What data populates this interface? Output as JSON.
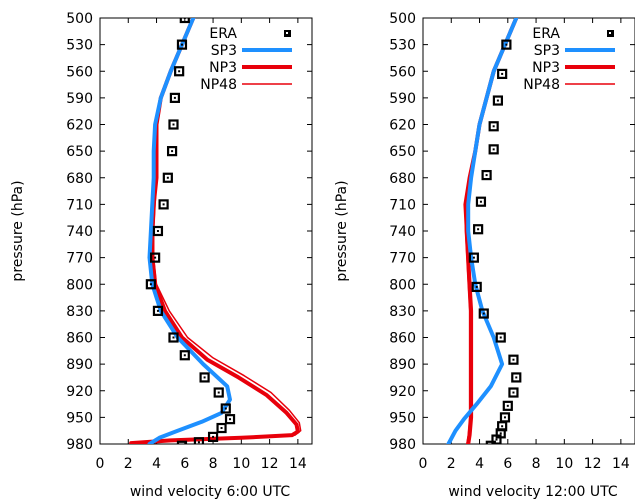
{
  "colors": {
    "ERA": "#000000",
    "SP3": "#1E90FF",
    "NP3": "#E8000B",
    "NP48": "#E8000B"
  },
  "chart_data": [
    {
      "type": "line",
      "xlabel": "wind velocity 6:00 UTC",
      "ylabel": "pressure (hPa)",
      "xlim": [
        0,
        15
      ],
      "ylim": [
        980,
        500
      ],
      "yticks": [
        500,
        530,
        560,
        590,
        620,
        650,
        680,
        710,
        740,
        770,
        800,
        830,
        860,
        890,
        920,
        950,
        980
      ],
      "xticks": [
        0,
        2,
        4,
        6,
        8,
        10,
        12,
        14
      ],
      "legend_position": "top-right",
      "series": [
        {
          "name": "ERA",
          "style": "markers",
          "points": [
            [
              6.0,
              500
            ],
            [
              5.8,
              530
            ],
            [
              5.6,
              560
            ],
            [
              5.3,
              590
            ],
            [
              5.2,
              620
            ],
            [
              5.1,
              650
            ],
            [
              4.8,
              680
            ],
            [
              4.5,
              710
            ],
            [
              4.1,
              740
            ],
            [
              3.9,
              770
            ],
            [
              3.6,
              800
            ],
            [
              4.1,
              830
            ],
            [
              5.2,
              860
            ],
            [
              6.0,
              880
            ],
            [
              7.4,
              905
            ],
            [
              8.4,
              922
            ],
            [
              8.9,
              940
            ],
            [
              9.2,
              952
            ],
            [
              8.6,
              962
            ],
            [
              8.0,
              972
            ],
            [
              7.0,
              978
            ],
            [
              5.8,
              982
            ]
          ]
        },
        {
          "name": "SP3",
          "style": "thick",
          "points": [
            [
              6.6,
              500
            ],
            [
              5.8,
              530
            ],
            [
              5.0,
              560
            ],
            [
              4.3,
              590
            ],
            [
              3.9,
              620
            ],
            [
              3.8,
              650
            ],
            [
              3.8,
              680
            ],
            [
              3.7,
              710
            ],
            [
              3.6,
              740
            ],
            [
              3.5,
              770
            ],
            [
              3.7,
              800
            ],
            [
              4.3,
              830
            ],
            [
              5.5,
              860
            ],
            [
              7.3,
              890
            ],
            [
              9.0,
              915
            ],
            [
              9.2,
              930
            ],
            [
              8.6,
              945
            ],
            [
              7.2,
              955
            ],
            [
              5.5,
              965
            ],
            [
              4.2,
              973
            ],
            [
              3.5,
              980
            ]
          ]
        },
        {
          "name": "NP3",
          "style": "thick",
          "points": [
            [
              6.6,
              500
            ],
            [
              5.8,
              530
            ],
            [
              5.0,
              560
            ],
            [
              4.3,
              590
            ],
            [
              4.0,
              620
            ],
            [
              4.0,
              650
            ],
            [
              4.0,
              680
            ],
            [
              3.8,
              710
            ],
            [
              3.7,
              740
            ],
            [
              3.7,
              770
            ],
            [
              3.9,
              800
            ],
            [
              4.6,
              830
            ],
            [
              5.8,
              860
            ],
            [
              7.6,
              885
            ],
            [
              9.8,
              905
            ],
            [
              11.8,
              925
            ],
            [
              13.2,
              945
            ],
            [
              13.9,
              958
            ],
            [
              14.0,
              966
            ],
            [
              13.6,
              970
            ],
            [
              10.0,
              973
            ],
            [
              5.0,
              976
            ],
            [
              2.2,
              979
            ]
          ]
        },
        {
          "name": "NP48",
          "style": "thin",
          "points": [
            [
              6.6,
              500
            ],
            [
              5.8,
              530
            ],
            [
              5.0,
              560
            ],
            [
              4.3,
              590
            ],
            [
              4.0,
              620
            ],
            [
              4.0,
              650
            ],
            [
              4.0,
              680
            ],
            [
              3.9,
              710
            ],
            [
              3.8,
              740
            ],
            [
              3.8,
              770
            ],
            [
              4.0,
              800
            ],
            [
              4.9,
              830
            ],
            [
              6.2,
              860
            ],
            [
              8.0,
              883
            ],
            [
              10.2,
              903
            ],
            [
              12.1,
              922
            ],
            [
              13.4,
              942
            ],
            [
              14.1,
              956
            ],
            [
              14.2,
              965
            ],
            [
              13.8,
              970
            ],
            [
              10.2,
              973
            ],
            [
              5.2,
              976
            ],
            [
              2.2,
              979
            ]
          ]
        }
      ]
    },
    {
      "type": "line",
      "xlabel": "wind velocity 12:00 UTC",
      "ylabel": "pressure (hPa)",
      "xlim": [
        0,
        15
      ],
      "ylim": [
        980,
        500
      ],
      "yticks": [
        500,
        530,
        560,
        590,
        620,
        650,
        680,
        710,
        740,
        770,
        800,
        830,
        860,
        890,
        920,
        950,
        980
      ],
      "xticks": [
        0,
        2,
        4,
        6,
        8,
        10,
        12,
        14
      ],
      "legend_position": "top-right",
      "series": [
        {
          "name": "ERA",
          "style": "markers",
          "points": [
            [
              5.9,
              530
            ],
            [
              5.6,
              563
            ],
            [
              5.3,
              593
            ],
            [
              5.0,
              622
            ],
            [
              5.0,
              648
            ],
            [
              4.5,
              677
            ],
            [
              4.1,
              707
            ],
            [
              3.9,
              738
            ],
            [
              3.6,
              770
            ],
            [
              3.8,
              803
            ],
            [
              4.3,
              833
            ],
            [
              5.5,
              860
            ],
            [
              6.4,
              885
            ],
            [
              6.6,
              905
            ],
            [
              6.4,
              922
            ],
            [
              6.0,
              937
            ],
            [
              5.8,
              950
            ],
            [
              5.6,
              960
            ],
            [
              5.5,
              968
            ],
            [
              5.2,
              975
            ],
            [
              4.8,
              982
            ]
          ]
        },
        {
          "name": "SP3",
          "style": "thick",
          "points": [
            [
              6.6,
              500
            ],
            [
              5.8,
              530
            ],
            [
              5.0,
              560
            ],
            [
              4.5,
              590
            ],
            [
              4.0,
              620
            ],
            [
              3.7,
              650
            ],
            [
              3.4,
              680
            ],
            [
              3.2,
              710
            ],
            [
              3.2,
              740
            ],
            [
              3.4,
              770
            ],
            [
              3.7,
              800
            ],
            [
              4.2,
              830
            ],
            [
              5.0,
              860
            ],
            [
              5.6,
              890
            ],
            [
              4.8,
              915
            ],
            [
              3.8,
              935
            ],
            [
              2.9,
              952
            ],
            [
              2.3,
              965
            ],
            [
              1.8,
              980
            ]
          ]
        },
        {
          "name": "NP3",
          "style": "thick",
          "points": [
            [
              6.6,
              500
            ],
            [
              5.8,
              530
            ],
            [
              5.0,
              560
            ],
            [
              4.5,
              590
            ],
            [
              4.0,
              620
            ],
            [
              3.7,
              650
            ],
            [
              3.3,
              680
            ],
            [
              3.0,
              710
            ],
            [
              3.1,
              740
            ],
            [
              3.2,
              770
            ],
            [
              3.3,
              800
            ],
            [
              3.4,
              830
            ],
            [
              3.4,
              860
            ],
            [
              3.4,
              890
            ],
            [
              3.4,
              920
            ],
            [
              3.4,
              950
            ],
            [
              3.3,
              970
            ],
            [
              3.2,
              980
            ]
          ]
        },
        {
          "name": "NP48",
          "style": "thin",
          "points": [
            [
              6.6,
              500
            ],
            [
              5.8,
              530
            ],
            [
              5.0,
              560
            ],
            [
              4.5,
              590
            ],
            [
              4.0,
              620
            ],
            [
              3.7,
              650
            ],
            [
              3.3,
              680
            ],
            [
              3.0,
              710
            ],
            [
              3.0,
              740
            ],
            [
              3.1,
              770
            ],
            [
              3.2,
              800
            ],
            [
              3.3,
              830
            ],
            [
              3.3,
              860
            ],
            [
              3.3,
              890
            ],
            [
              3.3,
              920
            ],
            [
              3.3,
              950
            ],
            [
              3.2,
              970
            ],
            [
              3.1,
              980
            ]
          ]
        }
      ]
    }
  ]
}
